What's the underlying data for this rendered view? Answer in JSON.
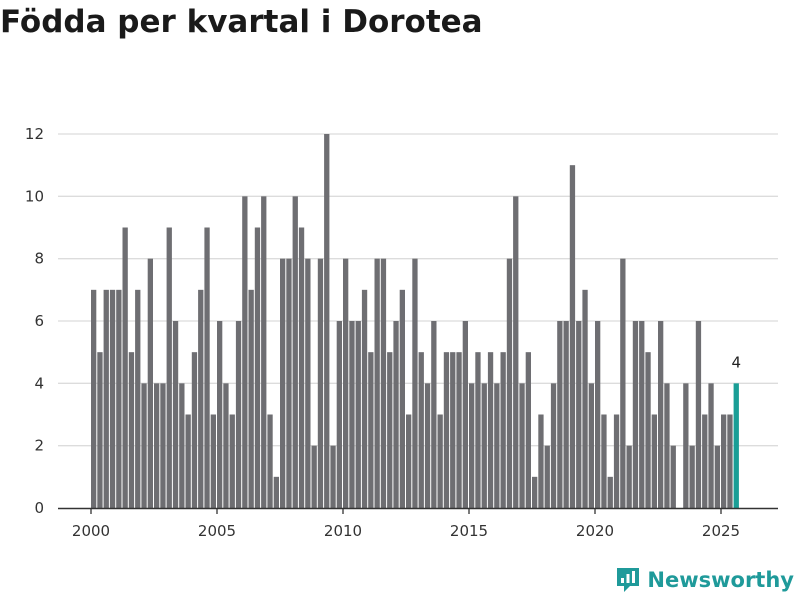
{
  "page": {
    "title": "Födda per kvartal i Dorotea",
    "brand_name": "Newsworthy"
  },
  "colors": {
    "bar": "#6e6e72",
    "highlight": "#1a9e96",
    "brand": "#1f9a9a",
    "grid": "#dcdcdc",
    "axis": "#333333"
  },
  "chart_data": {
    "type": "bar",
    "title": "Födda per kvartal i Dorotea",
    "xlabel": "",
    "ylabel": "",
    "ylim": [
      0,
      12
    ],
    "yticks": [
      0,
      2,
      4,
      6,
      8,
      10,
      12
    ],
    "xticks": [
      "2000",
      "2005",
      "2010",
      "2015",
      "2020",
      "2025"
    ],
    "start_year": 2000,
    "values": [
      7,
      5,
      7,
      7,
      7,
      9,
      5,
      7,
      4,
      8,
      4,
      4,
      9,
      6,
      4,
      3,
      5,
      7,
      9,
      3,
      6,
      4,
      3,
      6,
      10,
      7,
      9,
      10,
      3,
      1,
      8,
      8,
      10,
      9,
      8,
      2,
      8,
      12,
      2,
      6,
      8,
      6,
      6,
      7,
      5,
      8,
      8,
      5,
      6,
      7,
      3,
      8,
      5,
      4,
      6,
      3,
      5,
      5,
      5,
      6,
      4,
      5,
      4,
      5,
      4,
      5,
      8,
      10,
      4,
      5,
      1,
      3,
      2,
      4,
      6,
      6,
      11,
      6,
      7,
      4,
      6,
      3,
      1,
      3,
      8,
      2,
      6,
      6,
      5,
      3,
      6,
      4,
      2,
      0,
      4,
      2,
      6,
      3,
      4,
      2,
      3,
      3,
      4
    ],
    "highlight_last": true,
    "last_label": "4"
  }
}
